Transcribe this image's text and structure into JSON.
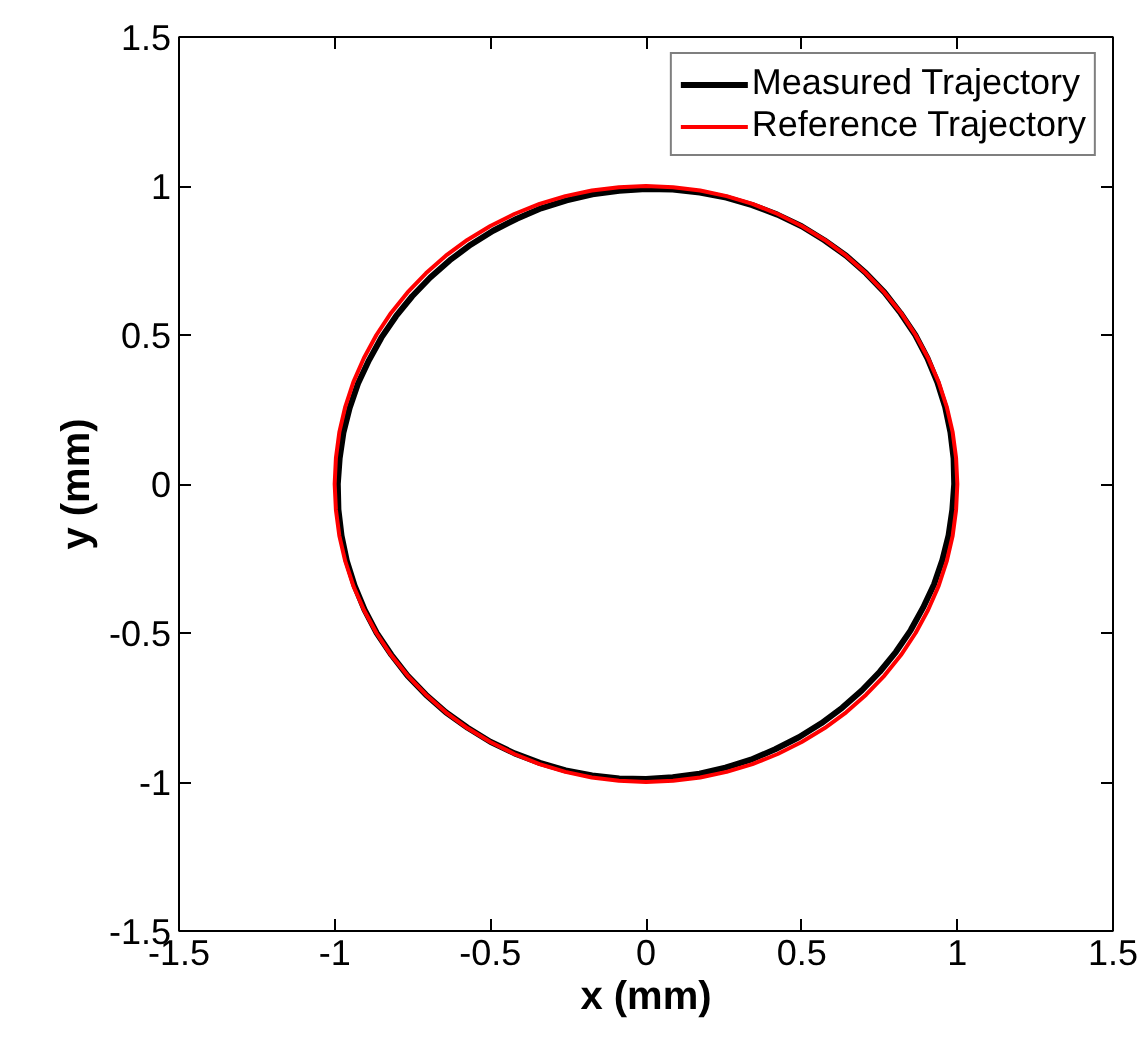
{
  "chart_data": {
    "type": "line",
    "xlabel": "x (mm)",
    "ylabel": "y (mm)",
    "xlim": [
      -1.5,
      1.5
    ],
    "ylim": [
      -1.5,
      1.5
    ],
    "xticks": [
      -1.5,
      -1,
      -0.5,
      0,
      0.5,
      1,
      1.5
    ],
    "yticks": [
      -1.5,
      -1,
      -0.5,
      0,
      0.5,
      1,
      1.5
    ],
    "grid": false,
    "legend": "top right",
    "series": [
      {
        "name": "Measured Trajectory",
        "color": "#000000",
        "x": [
          0.99,
          0.988,
          0.978,
          0.961,
          0.936,
          0.904,
          0.865,
          0.818,
          0.766,
          0.707,
          0.643,
          0.573,
          0.5,
          0.422,
          0.341,
          0.258,
          0.173,
          0.086,
          0.0,
          -0.086,
          -0.172,
          -0.255,
          -0.337,
          -0.415,
          -0.491,
          -0.563,
          -0.63,
          -0.693,
          -0.751,
          -0.803,
          -0.85,
          -0.89,
          -0.925,
          -0.952,
          -0.972,
          -0.984,
          -0.99,
          -0.988,
          -0.978,
          -0.961,
          -0.936,
          -0.904,
          -0.865,
          -0.818,
          -0.766,
          -0.707,
          -0.643,
          -0.573,
          -0.5,
          -0.422,
          -0.341,
          -0.258,
          -0.173,
          -0.086,
          0.0,
          0.086,
          0.172,
          0.255,
          0.337,
          0.415,
          0.491,
          0.563,
          0.63,
          0.693,
          0.751,
          0.803,
          0.85,
          0.89,
          0.925,
          0.952,
          0.972,
          0.984,
          0.99,
          0.988,
          0.978
        ],
        "values": [
          0.0,
          0.086,
          0.173,
          0.258,
          0.341,
          0.422,
          0.5,
          0.573,
          0.643,
          0.707,
          0.766,
          0.818,
          0.865,
          0.904,
          0.936,
          0.961,
          0.978,
          0.988,
          0.99,
          0.984,
          0.972,
          0.952,
          0.925,
          0.89,
          0.85,
          0.803,
          0.751,
          0.693,
          0.63,
          0.563,
          0.491,
          0.415,
          0.337,
          0.255,
          0.172,
          0.086,
          0.0,
          -0.086,
          -0.173,
          -0.258,
          -0.341,
          -0.422,
          -0.5,
          -0.573,
          -0.643,
          -0.707,
          -0.766,
          -0.818,
          -0.865,
          -0.904,
          -0.936,
          -0.961,
          -0.978,
          -0.988,
          -0.99,
          -0.984,
          -0.972,
          -0.952,
          -0.925,
          -0.89,
          -0.85,
          -0.803,
          -0.751,
          -0.693,
          -0.63,
          -0.563,
          -0.491,
          -0.415,
          -0.337,
          -0.255,
          -0.172,
          -0.086,
          0.0,
          0.086,
          0.173
        ]
      },
      {
        "name": "Reference Trajectory",
        "color": "#ff0000",
        "x": [
          1,
          0.996,
          0.985,
          0.966,
          0.94,
          0.906,
          0.866,
          0.819,
          0.766,
          0.707,
          0.643,
          0.574,
          0.5,
          0.423,
          0.342,
          0.259,
          0.174,
          0.087,
          0,
          -0.087,
          -0.174,
          -0.259,
          -0.342,
          -0.423,
          -0.5,
          -0.574,
          -0.643,
          -0.707,
          -0.766,
          -0.819,
          -0.866,
          -0.906,
          -0.94,
          -0.966,
          -0.985,
          -0.996,
          -1,
          -0.996,
          -0.985,
          -0.966,
          -0.94,
          -0.906,
          -0.866,
          -0.819,
          -0.766,
          -0.707,
          -0.643,
          -0.574,
          -0.5,
          -0.423,
          -0.342,
          -0.259,
          -0.174,
          -0.087,
          0,
          0.087,
          0.174,
          0.259,
          0.342,
          0.423,
          0.5,
          0.574,
          0.643,
          0.707,
          0.766,
          0.819,
          0.866,
          0.906,
          0.94,
          0.966,
          0.985,
          0.996,
          1,
          0.996,
          0.985
        ],
        "values": [
          0,
          0.087,
          0.174,
          0.259,
          0.342,
          0.423,
          0.5,
          0.574,
          0.643,
          0.707,
          0.766,
          0.819,
          0.866,
          0.906,
          0.94,
          0.966,
          0.985,
          0.996,
          1,
          0.996,
          0.985,
          0.966,
          0.94,
          0.906,
          0.866,
          0.819,
          0.766,
          0.707,
          0.643,
          0.574,
          0.5,
          0.423,
          0.342,
          0.259,
          0.174,
          0.087,
          0,
          -0.087,
          -0.174,
          -0.259,
          -0.342,
          -0.423,
          -0.5,
          -0.574,
          -0.643,
          -0.707,
          -0.766,
          -0.819,
          -0.866,
          -0.906,
          -0.94,
          -0.966,
          -0.985,
          -0.996,
          -1,
          -0.996,
          -0.985,
          -0.966,
          -0.94,
          -0.906,
          -0.866,
          -0.819,
          -0.766,
          -0.707,
          -0.643,
          -0.574,
          -0.5,
          -0.423,
          -0.342,
          -0.259,
          -0.174,
          -0.087,
          0,
          0.087,
          0.174
        ]
      }
    ]
  }
}
